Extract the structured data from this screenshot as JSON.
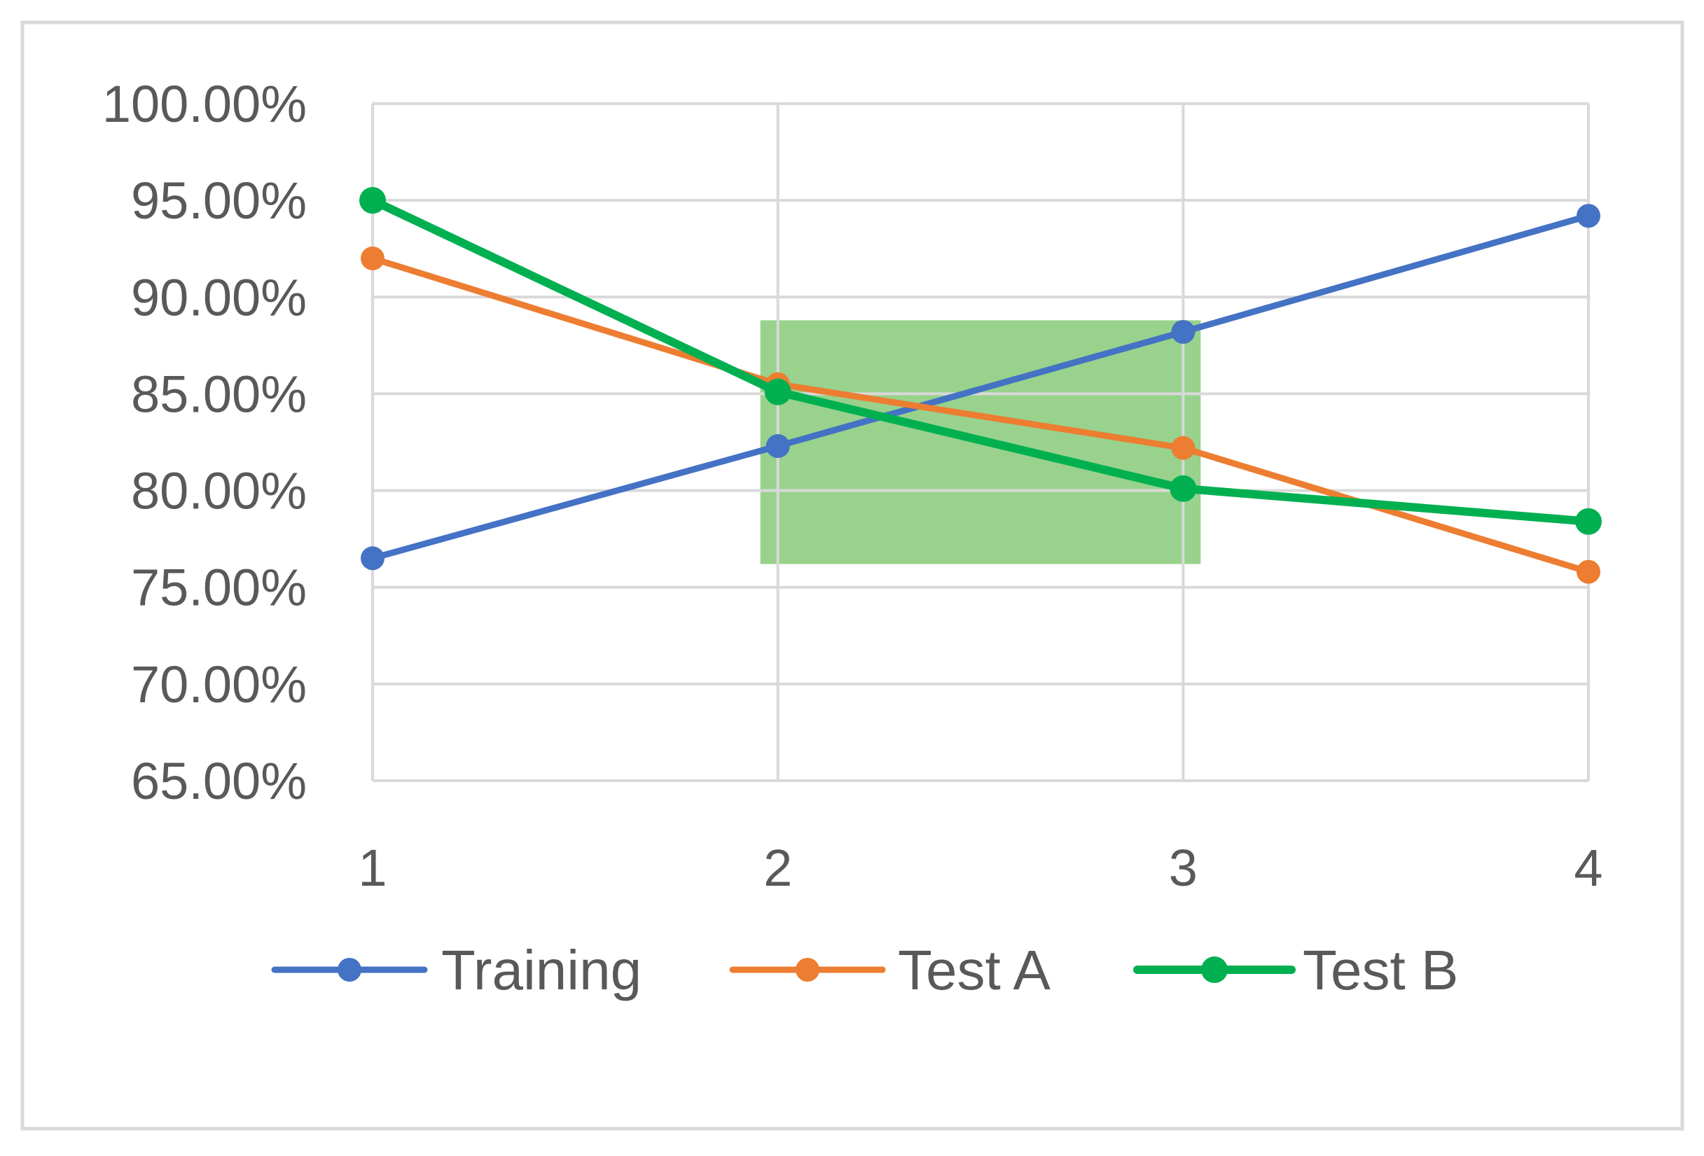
{
  "chart_data": {
    "type": "line",
    "title": "",
    "xlabel": "",
    "ylabel": "",
    "categories": [
      "1",
      "2",
      "3",
      "4"
    ],
    "x": [
      1,
      2,
      3,
      4
    ],
    "ylim": [
      0.65,
      1.0
    ],
    "y_ticks": [
      "65.00%",
      "70.00%",
      "75.00%",
      "80.00%",
      "85.00%",
      "90.00%",
      "95.00%",
      "100.00%"
    ],
    "y_tick_values": [
      0.65,
      0.7,
      0.75,
      0.8,
      0.85,
      0.9,
      0.95,
      1.0
    ],
    "grid": true,
    "legend_position": "bottom",
    "series": [
      {
        "name": "Training",
        "color": "#4472C4",
        "values": [
          0.765,
          0.823,
          0.882,
          0.942
        ]
      },
      {
        "name": "Test A",
        "color": "#ED7D31",
        "values": [
          0.92,
          0.855,
          0.822,
          0.758
        ]
      },
      {
        "name": "Test B",
        "color": "#00B050",
        "values": [
          0.95,
          0.851,
          0.801,
          0.784
        ]
      }
    ],
    "highlight": {
      "color": "#92D087",
      "x_range": [
        2,
        3
      ],
      "y_range": [
        0.762,
        0.888
      ]
    }
  }
}
